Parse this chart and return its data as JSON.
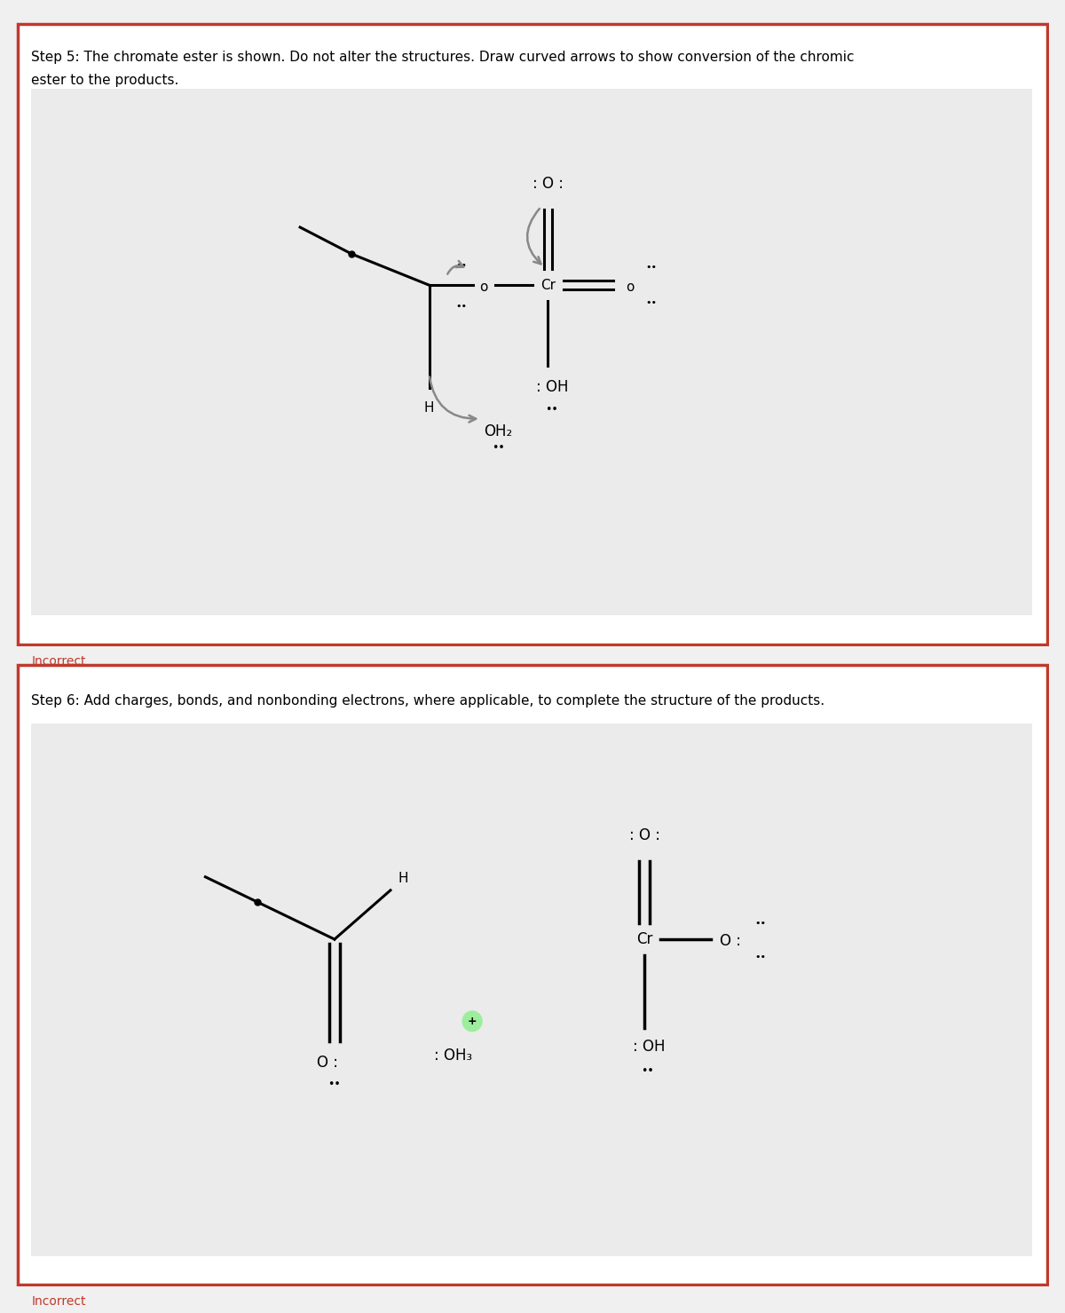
{
  "white": "#ffffff",
  "light_gray": "#ebebeb",
  "page_bg": "#f0f0f0",
  "red_border": "#c0392b",
  "black": "#000000",
  "gray_arrow": "#888888",
  "incorrect_color": "#c0392b",
  "panel1_line1": "Step 5: The chromate ester is shown. Do not alter the structures. Draw curved arrows to show conversion of the chromic",
  "panel1_line2": "ester to the products.",
  "panel2_title": "Step 6: Add charges, bonds, and nonbonding electrons, where applicable, to complete the structure of the products.",
  "incorrect_text": "Incorrect",
  "green_highlight": "#90EE90"
}
